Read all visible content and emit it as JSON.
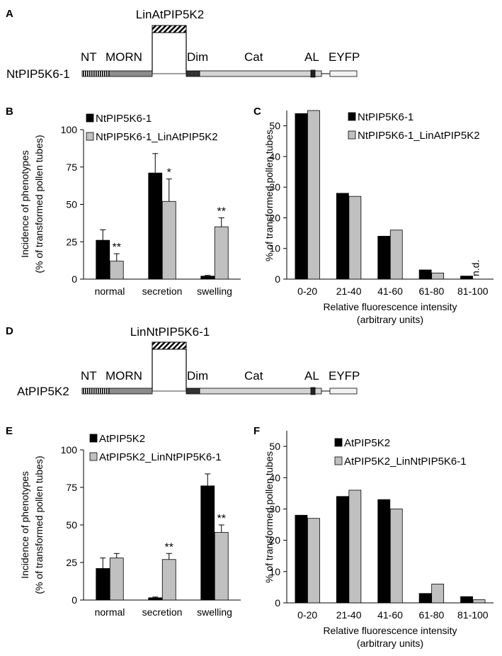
{
  "colors": {
    "black_bar": "#000000",
    "gray_bar": "#c0c0c0",
    "ntmorn_gray": "#8c8c8c",
    "cat_gray": "#d4d4d4",
    "dim_dark": "#333333",
    "eyfp_fill": "#f2f2f2"
  },
  "panels": {
    "A": {
      "letter": "A",
      "linker_label": "LinAtPIP5K2",
      "construct_name": "NtPIP5K6-1",
      "domains": {
        "nt": "NT",
        "morn": "MORN",
        "dim": "Dim",
        "cat": "Cat",
        "al": "AL",
        "eyfp": "EYFP"
      }
    },
    "B": {
      "letter": "B"
    },
    "C": {
      "letter": "C"
    },
    "D": {
      "letter": "D",
      "linker_label": "LinNtPIP5K6-1",
      "construct_name": "AtPIP5K2",
      "domains": {
        "nt": "NT",
        "morn": "MORN",
        "dim": "Dim",
        "cat": "Cat",
        "al": "AL",
        "eyfp": "EYFP"
      }
    },
    "E": {
      "letter": "E"
    },
    "F": {
      "letter": "F"
    }
  },
  "chart_data": [
    {
      "panel": "B",
      "type": "bar",
      "ylabel": [
        "Incidence of phenotypes",
        "(% of transformed pollen tubes)"
      ],
      "xlabel": [],
      "ylim": [
        0,
        100
      ],
      "yticks": [
        0,
        25,
        50,
        75,
        100
      ],
      "categories": [
        "normal",
        "secretion",
        "swelling"
      ],
      "series": [
        {
          "name": "NtPIP5K6-1",
          "color": "black",
          "values": [
            26,
            71,
            2
          ],
          "errors": [
            7,
            13,
            0.5
          ],
          "sig": [
            "",
            "",
            ""
          ]
        },
        {
          "name": "NtPIP5K6-1_LinAtPIP5K2",
          "color": "gray",
          "values": [
            12,
            52,
            35
          ],
          "errors": [
            5,
            15,
            6
          ],
          "sig": [
            "**",
            "*",
            "**"
          ]
        }
      ],
      "annotations": []
    },
    {
      "panel": "C",
      "type": "bar",
      "ylabel": [
        "% of transformed pollen tubes"
      ],
      "xlabel": [
        "Relative fluorescence intensity",
        "(arbitrary units)"
      ],
      "ylim": [
        0,
        55
      ],
      "yticks": [
        0,
        10,
        20,
        30,
        40,
        50
      ],
      "categories": [
        "0-20",
        "21-40",
        "41-60",
        "61-80",
        "81-100"
      ],
      "series": [
        {
          "name": "NtPIP5K6-1",
          "color": "black",
          "values": [
            54,
            28,
            14,
            3,
            1
          ],
          "errors": null,
          "sig": null
        },
        {
          "name": "NtPIP5K6-1_LinAtPIP5K2",
          "color": "gray",
          "values": [
            55,
            27,
            16,
            2,
            null
          ],
          "errors": null,
          "sig": null
        }
      ],
      "annotations": [
        "n.d."
      ]
    },
    {
      "panel": "E",
      "type": "bar",
      "ylabel": [
        "Incidence of phenotypes",
        "(% of transformed pollen tubes)"
      ],
      "xlabel": [],
      "ylim": [
        0,
        100
      ],
      "yticks": [
        0,
        25,
        50,
        75,
        100
      ],
      "categories": [
        "normal",
        "secretion",
        "swelling"
      ],
      "series": [
        {
          "name": "AtPIP5K2",
          "color": "black",
          "values": [
            21,
            1.5,
            76
          ],
          "errors": [
            7,
            0.5,
            8
          ],
          "sig": [
            "",
            "",
            ""
          ]
        },
        {
          "name": "AtPIP5K2_LinNtPIP5K6-1",
          "color": "gray",
          "values": [
            28,
            27,
            45
          ],
          "errors": [
            3,
            4,
            5
          ],
          "sig": [
            "",
            "**",
            "**"
          ]
        }
      ],
      "annotations": []
    },
    {
      "panel": "F",
      "type": "bar",
      "ylabel": [
        "% of transformed pollen tubes"
      ],
      "xlabel": [
        "Relative fluorescence intensity",
        "(arbitrary units)"
      ],
      "ylim": [
        0,
        55
      ],
      "yticks": [
        0,
        10,
        20,
        30,
        40,
        50
      ],
      "categories": [
        "0-20",
        "21-40",
        "41-60",
        "61-80",
        "81-100"
      ],
      "series": [
        {
          "name": "AtPIP5K2",
          "color": "black",
          "values": [
            28,
            34,
            33,
            3,
            2
          ],
          "errors": null,
          "sig": null
        },
        {
          "name": "AtPIP5K2_LinNtPIP5K6-1",
          "color": "gray",
          "values": [
            27,
            36,
            30,
            6,
            1
          ],
          "errors": null,
          "sig": null
        }
      ],
      "annotations": []
    }
  ]
}
